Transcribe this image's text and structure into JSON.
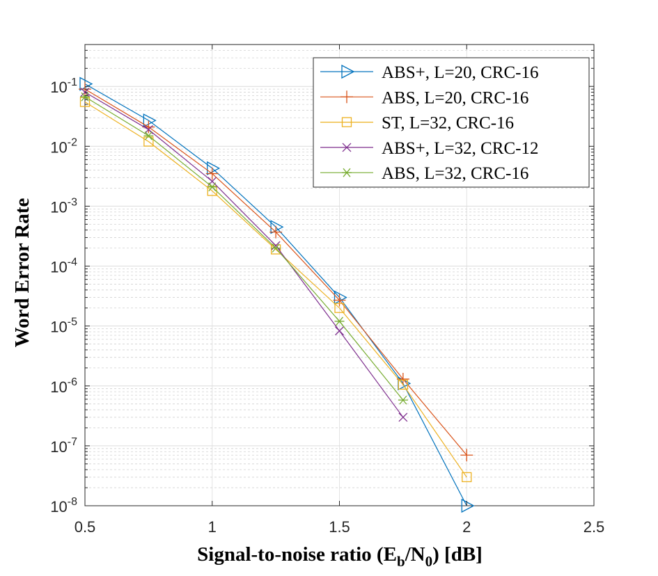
{
  "chart_data": {
    "type": "line",
    "xlabel": {
      "text": "Signal-to-noise ratio (E",
      "sub1": "b",
      "mid": "/N",
      "sub2": "0",
      "end": ") [dB]"
    },
    "ylabel": "Word  Error  Rate",
    "xlim": [
      0.5,
      2.5
    ],
    "ylim": [
      1e-08,
      0.5
    ],
    "yscale": "log",
    "grid": true,
    "legend_position": "top-right",
    "x_ticks": [
      "0.5",
      "1",
      "1.5",
      "2",
      "2.5"
    ],
    "y_ticks": [
      {
        "base": "10",
        "exp": "-1"
      },
      {
        "base": "10",
        "exp": "-2"
      },
      {
        "base": "10",
        "exp": "-3"
      },
      {
        "base": "10",
        "exp": "-4"
      },
      {
        "base": "10",
        "exp": "-5"
      },
      {
        "base": "10",
        "exp": "-6"
      },
      {
        "base": "10",
        "exp": "-7"
      },
      {
        "base": "10",
        "exp": "-8"
      }
    ],
    "series": [
      {
        "name": "ABS+, L=20, CRC-16",
        "color": "#0072BD",
        "marker": "triangle-right",
        "x": [
          0.5,
          0.75,
          1.0,
          1.25,
          1.5,
          1.75,
          2.0
        ],
        "y": [
          0.11,
          0.027,
          0.0043,
          0.00045,
          3e-05,
          1.1e-06,
          1e-08
        ]
      },
      {
        "name": "ABS, L=20, CRC-16",
        "color": "#D95319",
        "marker": "plus",
        "x": [
          0.5,
          0.75,
          1.0,
          1.25,
          1.5,
          1.75,
          2.0
        ],
        "y": [
          0.09,
          0.021,
          0.0035,
          0.00037,
          2.7e-05,
          1.3e-06,
          7e-08
        ]
      },
      {
        "name": "ST, L=32, CRC-16",
        "color": "#EDB120",
        "marker": "square",
        "x": [
          0.5,
          0.75,
          1.0,
          1.25,
          1.5,
          1.75,
          2.0
        ],
        "y": [
          0.055,
          0.012,
          0.0018,
          0.00019,
          2e-05,
          1.05e-06,
          3e-08
        ]
      },
      {
        "name": "ABS+, L=32, CRC-12",
        "color": "#7E2F8E",
        "marker": "x",
        "x": [
          0.5,
          0.75,
          1.0,
          1.25,
          1.5,
          1.75
        ],
        "y": [
          0.08,
          0.019,
          0.0026,
          0.00022,
          8.3e-06,
          3e-07
        ]
      },
      {
        "name": "ABS, L=32, CRC-16",
        "color": "#77AC30",
        "marker": "asterisk",
        "x": [
          0.5,
          0.75,
          1.0,
          1.25,
          1.5,
          1.75
        ],
        "y": [
          0.067,
          0.015,
          0.0021,
          0.0002,
          1.2e-05,
          5.8e-07
        ]
      }
    ]
  }
}
